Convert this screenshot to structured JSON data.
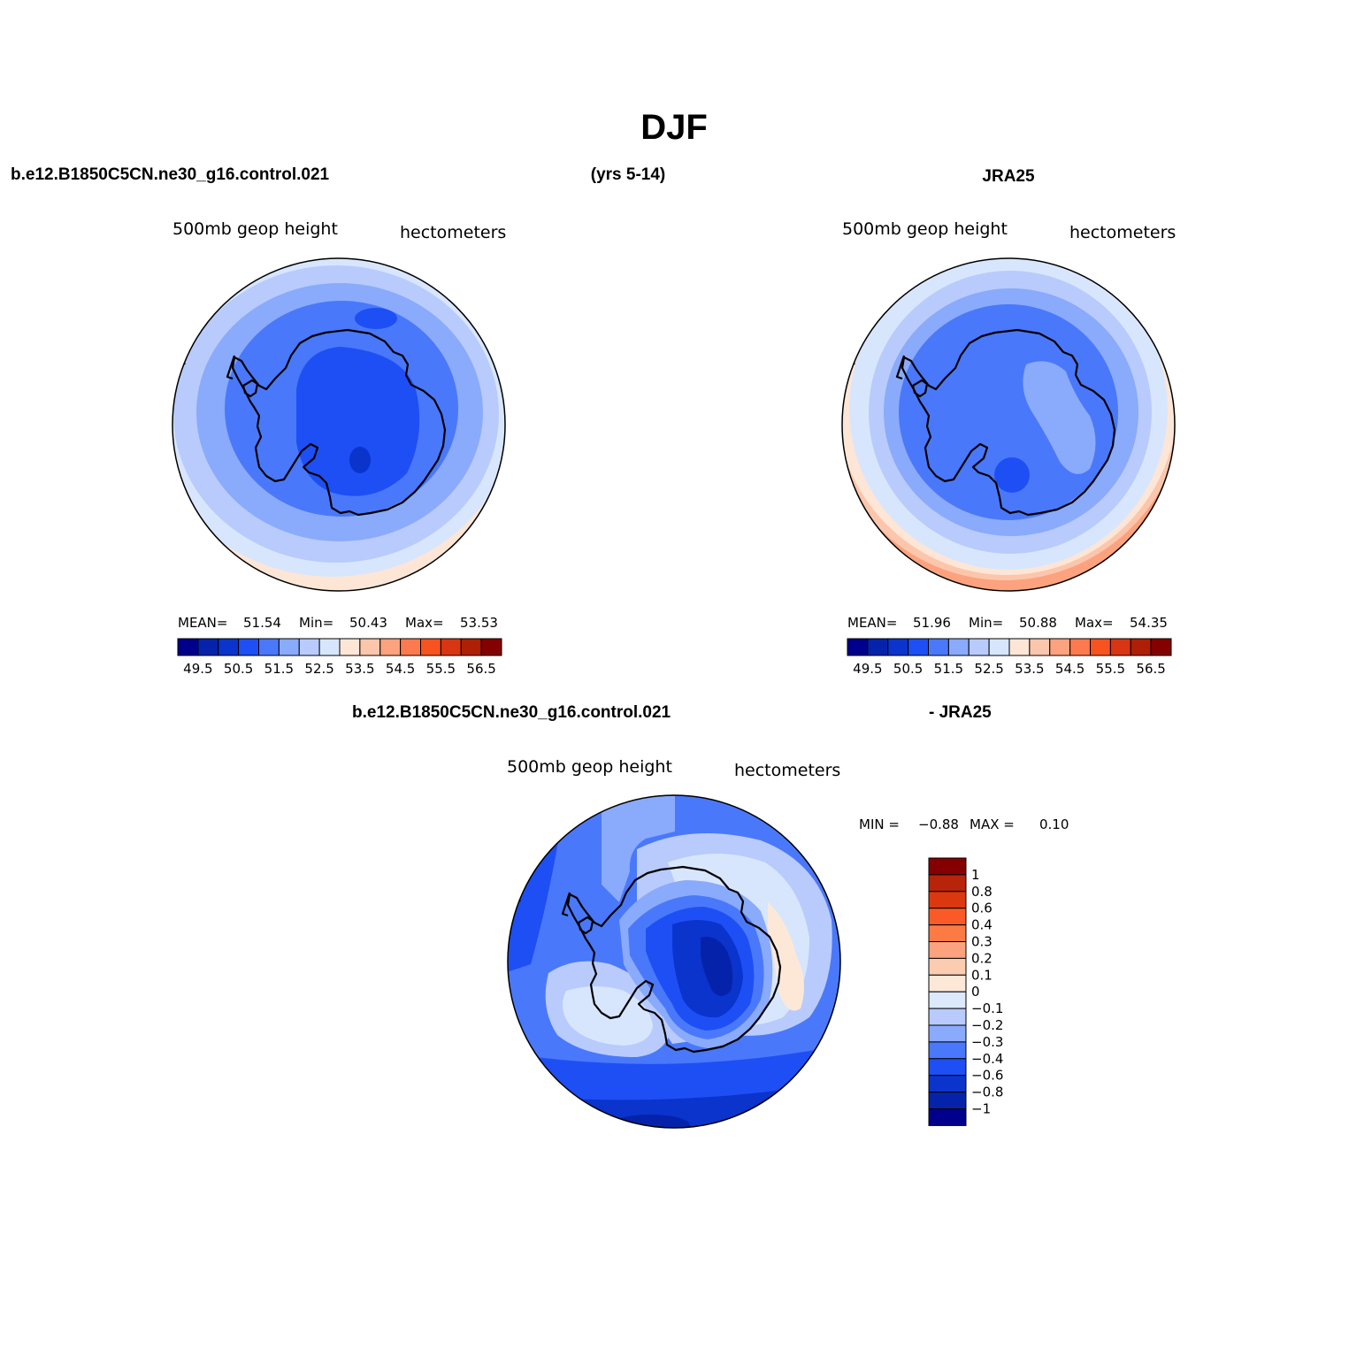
{
  "page": {
    "title": "DJF",
    "case_name": "b.e12.B1850C5CN.ne30_g16.control.021",
    "years": "(yrs 5-14)",
    "obs_name": "JRA25",
    "diff_left": "b.e12.B1850C5CN.ne30_g16.control.021",
    "diff_right": "- JRA25"
  },
  "panels": {
    "model": {
      "variable": "500mb  geop  height",
      "units": "hectometers",
      "mean_label": "MEAN=",
      "mean": "51.54",
      "min_label": "Min=",
      "min": "50.43",
      "max_label": "Max=",
      "max": "53.53"
    },
    "obs": {
      "variable": "500mb  geop  height",
      "units": "hectometers",
      "mean_label": "MEAN=",
      "mean": "51.96",
      "min_label": "Min=",
      "min": "50.88",
      "max_label": "Max=",
      "max": "54.35"
    },
    "diff": {
      "variable": "500mb  geop  height",
      "units": "hectometers",
      "min_label": "MIN =",
      "min": "−0.88",
      "max_label": "MAX =",
      "max": "0.10"
    }
  },
  "colorbar_main": {
    "colors": [
      "#00008c",
      "#0523aa",
      "#0a34cc",
      "#1d4ff5",
      "#4a78fa",
      "#8aaafb",
      "#b8cbfc",
      "#d8e6fd",
      "#fde6d6",
      "#fcc6ac",
      "#fca27e",
      "#fc7a4d",
      "#f8531f",
      "#d83512",
      "#ae1f06",
      "#850000"
    ],
    "labels": [
      "49.5",
      "50.5",
      "51.5",
      "52.5",
      "53.5",
      "54.5",
      "55.5",
      "56.5"
    ]
  },
  "colorbar_diff": {
    "colors_top_to_bottom": [
      "#850000",
      "#b8240a",
      "#dc3810",
      "#fa5a26",
      "#fc7a44",
      "#fca27e",
      "#fcccb0",
      "#fde8d8",
      "#dce9fd",
      "#b8cbfc",
      "#8aaafb",
      "#4a78fa",
      "#1d4ff5",
      "#0a34cc",
      "#0523aa",
      "#00008c"
    ],
    "labels": [
      "1",
      "0.8",
      "0.6",
      "0.4",
      "0.3",
      "0.2",
      "0.1",
      "0",
      "−0.1",
      "−0.2",
      "−0.3",
      "−0.4",
      "−0.6",
      "−0.8",
      "−1"
    ]
  },
  "fill_colors": {
    "model_levels": [
      "#d8e6fd",
      "#b8cbfc",
      "#8aaafb",
      "#4a78fa",
      "#1d4ff5"
    ],
    "obs_levels": [
      "#fcc6ac",
      "#fde6d6",
      "#d8e6fd",
      "#b8cbfc",
      "#8aaafb",
      "#4a78fa"
    ]
  }
}
